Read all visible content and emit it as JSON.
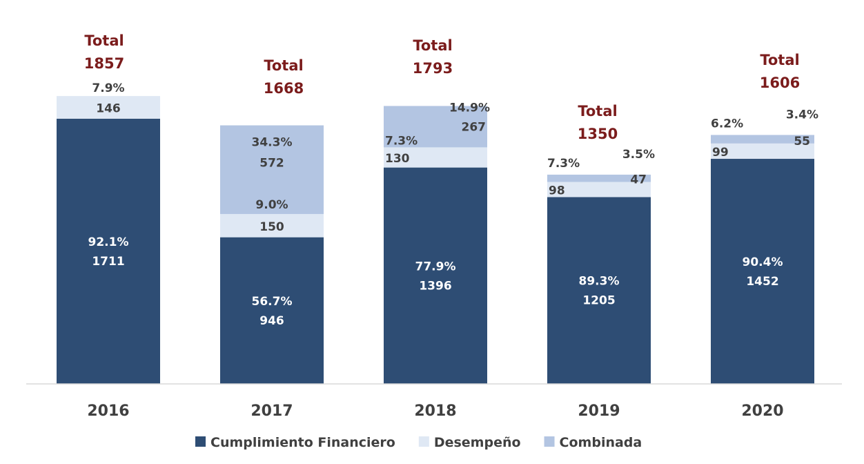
{
  "chart_data": {
    "type": "bar",
    "stacked": true,
    "categories": [
      "2016",
      "2017",
      "2018",
      "2019",
      "2020"
    ],
    "series": [
      {
        "name": "Cumplimiento Financiero",
        "color": "#2e4d74",
        "values": [
          1711,
          946,
          1396,
          1205,
          1452
        ],
        "value_labels": [
          "1711",
          "946",
          "1396",
          "1205",
          "1452"
        ],
        "percent_labels": [
          "92.1%",
          "56.7%",
          "77.9%",
          "89.3%",
          "90.4%"
        ]
      },
      {
        "name": "Desempeño",
        "color": "#dfe8f4",
        "values": [
          146,
          150,
          130,
          98,
          99
        ],
        "value_labels": [
          "146",
          "150",
          "130",
          "98",
          "99"
        ],
        "percent_labels": [
          "7.9%",
          "9.0%",
          "7.3%",
          "7.3%",
          "6.2%"
        ]
      },
      {
        "name": "Combinada",
        "color": "#b3c5e2",
        "values": [
          0,
          572,
          267,
          47,
          55
        ],
        "value_labels": [
          "",
          "572",
          "267",
          "47",
          "55"
        ],
        "percent_labels": [
          "",
          "34.3%",
          "14.9%",
          "3.5%",
          "3.4%"
        ]
      }
    ],
    "totals": [
      {
        "title": "Total",
        "value": "1857"
      },
      {
        "title": "Total",
        "value": "1668"
      },
      {
        "title": "Total",
        "value": "1793"
      },
      {
        "title": "Total",
        "value": "1350"
      },
      {
        "title": "Total",
        "value": "1606"
      }
    ],
    "ylim": [
      0,
      2000
    ],
    "grid": false,
    "legend": "bottom",
    "title": "",
    "xlabel": "",
    "ylabel": ""
  }
}
